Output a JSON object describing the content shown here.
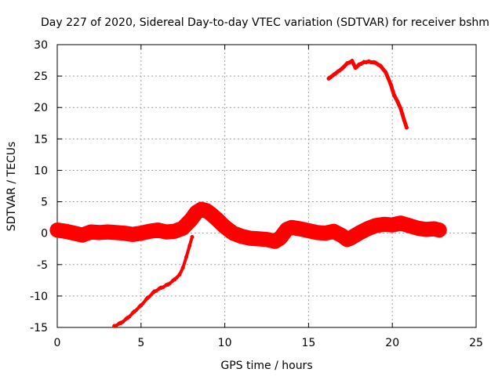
{
  "chart_data": {
    "type": "line",
    "title": "Day 227 of 2020, Sidereal Day-to-day VTEC variation (SDTVAR) for receiver bshm",
    "xlabel": "GPS time / hours",
    "ylabel": "SDTVAR / TECUs",
    "xlim": [
      0,
      25
    ],
    "ylim": [
      -15,
      30
    ],
    "xticks": [
      0,
      5,
      10,
      15,
      20,
      25
    ],
    "yticks": [
      -15,
      -10,
      -5,
      0,
      5,
      10,
      15,
      20,
      25,
      30
    ],
    "grid": true,
    "series": [
      {
        "name": "main-band",
        "color": "#ff0000",
        "band": 1.2,
        "x": [
          0,
          0.5,
          1,
          1.5,
          2,
          2.5,
          3,
          3.5,
          4,
          4.5,
          5,
          5.5,
          6,
          6.5,
          7,
          7.5,
          8,
          8.3,
          8.6,
          8.9,
          9.2,
          9.5,
          10,
          10.5,
          11,
          11.5,
          12,
          12.5,
          13,
          13.3,
          13.7,
          14,
          14.5,
          15,
          15.5,
          16,
          16.5,
          17,
          17.3,
          17.5,
          18,
          18.5,
          19,
          19.5,
          20,
          20.5,
          21,
          21.5,
          22,
          22.5,
          22.8
        ],
        "values": [
          0.5,
          0.3,
          0,
          -0.3,
          0.2,
          0.1,
          0.2,
          0.1,
          0,
          -0.2,
          0,
          0.3,
          0.5,
          0.2,
          0.3,
          0.8,
          2.2,
          3.3,
          3.8,
          3.6,
          3,
          2.3,
          1,
          0,
          -0.5,
          -0.8,
          -0.9,
          -1,
          -1.3,
          -0.8,
          0.6,
          0.9,
          0.7,
          0.4,
          0.1,
          0,
          0.3,
          -0.4,
          -1,
          -0.8,
          0,
          0.7,
          1.2,
          1.4,
          1.3,
          1.6,
          1.2,
          0.8,
          0.6,
          0.7,
          0.5
        ]
      },
      {
        "name": "rising-track",
        "color": "#ff0000",
        "band": 0.25,
        "x": [
          3.4,
          3.8,
          4.2,
          4.6,
          5,
          5.4,
          5.8,
          6.2,
          6.6,
          7,
          7.3,
          7.5,
          7.7,
          7.9,
          8.05
        ],
        "values": [
          -14.8,
          -14.3,
          -13.5,
          -12.5,
          -11.5,
          -10.3,
          -9.3,
          -8.7,
          -8.2,
          -7.4,
          -6.6,
          -5.5,
          -3.8,
          -2,
          -0.6
        ]
      },
      {
        "name": "upper-track",
        "color": "#ff0000",
        "band": 0.3,
        "x": [
          16.2,
          16.5,
          17,
          17.3,
          17.6,
          17.8,
          18,
          18.3,
          18.6,
          19,
          19.3,
          19.6,
          19.9,
          20.1,
          20.3,
          20.5,
          20.7,
          20.85
        ],
        "values": [
          24.6,
          25.2,
          26.2,
          27,
          27.4,
          26.3,
          26.8,
          27.2,
          27.3,
          27.1,
          26.6,
          25.6,
          23.7,
          22,
          21,
          19.8,
          18,
          16.8
        ]
      }
    ]
  }
}
